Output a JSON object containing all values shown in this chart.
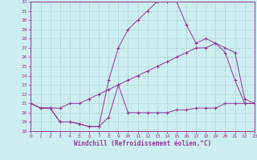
{
  "xlabel": "Windchill (Refroidissement éolien,°C)",
  "bg_color": "#cceef0",
  "line_color": "#993399",
  "grid_color": "#aacccc",
  "xlim": [
    0,
    23
  ],
  "ylim": [
    18,
    32
  ],
  "xticks": [
    0,
    1,
    2,
    3,
    4,
    5,
    6,
    7,
    8,
    9,
    10,
    11,
    12,
    13,
    14,
    15,
    16,
    17,
    18,
    19,
    20,
    21,
    22,
    23
  ],
  "yticks": [
    18,
    19,
    20,
    21,
    22,
    23,
    24,
    25,
    26,
    27,
    28,
    29,
    30,
    31,
    32
  ],
  "line1_x": [
    0,
    1,
    2,
    3,
    4,
    5,
    6,
    7,
    8,
    9,
    10,
    11,
    12,
    13,
    14,
    15,
    16,
    17,
    18,
    19,
    20,
    21,
    22,
    23
  ],
  "line1_y": [
    21.0,
    20.5,
    20.5,
    19.0,
    19.0,
    18.8,
    18.5,
    18.5,
    19.5,
    23.0,
    20.0,
    20.0,
    20.0,
    20.0,
    20.0,
    20.3,
    20.3,
    20.5,
    20.5,
    20.5,
    21.0,
    21.0,
    21.0,
    21.0
  ],
  "line2_x": [
    0,
    1,
    2,
    3,
    4,
    5,
    6,
    7,
    8,
    9,
    10,
    11,
    12,
    13,
    14,
    15,
    16,
    17,
    18,
    19,
    20,
    21,
    22,
    23
  ],
  "line2_y": [
    21.0,
    20.5,
    20.5,
    19.0,
    19.0,
    18.8,
    18.5,
    18.5,
    23.5,
    27.0,
    29.0,
    30.0,
    31.0,
    32.0,
    32.0,
    32.0,
    29.5,
    27.5,
    28.0,
    27.5,
    26.5,
    23.5,
    21.0,
    21.0
  ],
  "line3_x": [
    0,
    1,
    2,
    3,
    4,
    5,
    6,
    7,
    8,
    9,
    10,
    11,
    12,
    13,
    14,
    15,
    16,
    17,
    18,
    19,
    20,
    21,
    22,
    23
  ],
  "line3_y": [
    21.0,
    20.5,
    20.5,
    20.5,
    21.0,
    21.0,
    21.5,
    22.0,
    22.5,
    23.0,
    23.5,
    24.0,
    24.5,
    25.0,
    25.5,
    26.0,
    26.5,
    27.0,
    27.0,
    27.5,
    27.0,
    26.5,
    21.5,
    21.0
  ]
}
